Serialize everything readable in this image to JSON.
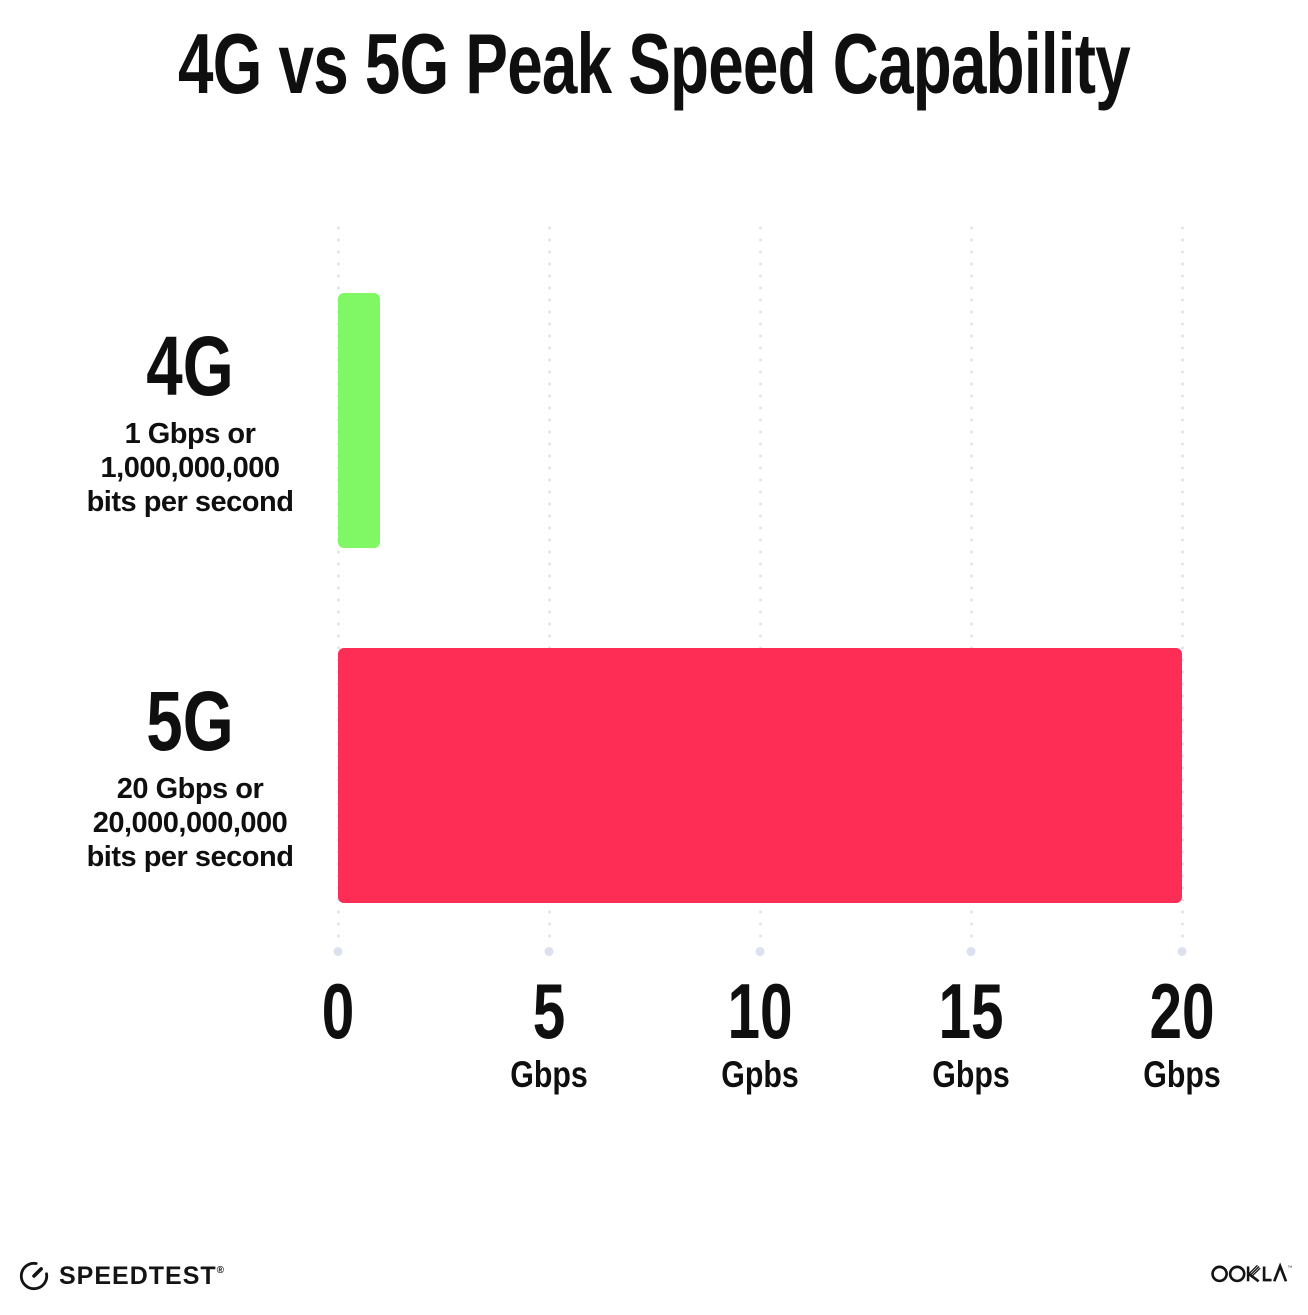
{
  "title": "4G vs 5G Peak Speed Capability",
  "colors": {
    "bar_4g": "#80F764",
    "bar_5g": "#FD2D55",
    "grid_dot": "#E1E4F2",
    "text": "#0F0F0F"
  },
  "chart_data": {
    "type": "bar",
    "orientation": "horizontal",
    "title": "4G vs 5G Peak Speed Capability",
    "categories": [
      "4G",
      "5G"
    ],
    "values": [
      1,
      20
    ],
    "unit": "Gbps",
    "xlim": [
      0,
      20
    ],
    "xlabel": "Gbps",
    "ylabel": "",
    "grid": "dotted vertical gridlines at 0, 5, 10, 15, 20",
    "legend": "none",
    "bar_colors": [
      "#80F764",
      "#FD2D55"
    ],
    "rows": [
      {
        "label": "4G",
        "value_gbps": 1,
        "description_lines": [
          "1 Gbps or",
          "1,000,000,000",
          "bits per second"
        ]
      },
      {
        "label": "5G",
        "value_gbps": 20,
        "description_lines": [
          "20 Gbps or",
          "20,000,000,000",
          "bits per second"
        ]
      }
    ]
  },
  "x_axis": {
    "ticks": [
      {
        "value": "0",
        "unit": ""
      },
      {
        "value": "5",
        "unit": "Gbps"
      },
      {
        "value": "10",
        "unit": "Gpbs"
      },
      {
        "value": "15",
        "unit": "Gbps"
      },
      {
        "value": "20",
        "unit": "Gbps"
      }
    ]
  },
  "footer": {
    "speedtest": {
      "label": "SPEEDTEST",
      "mark": "®"
    },
    "ookla": {
      "label": "OOKLA",
      "mark": "™"
    }
  }
}
